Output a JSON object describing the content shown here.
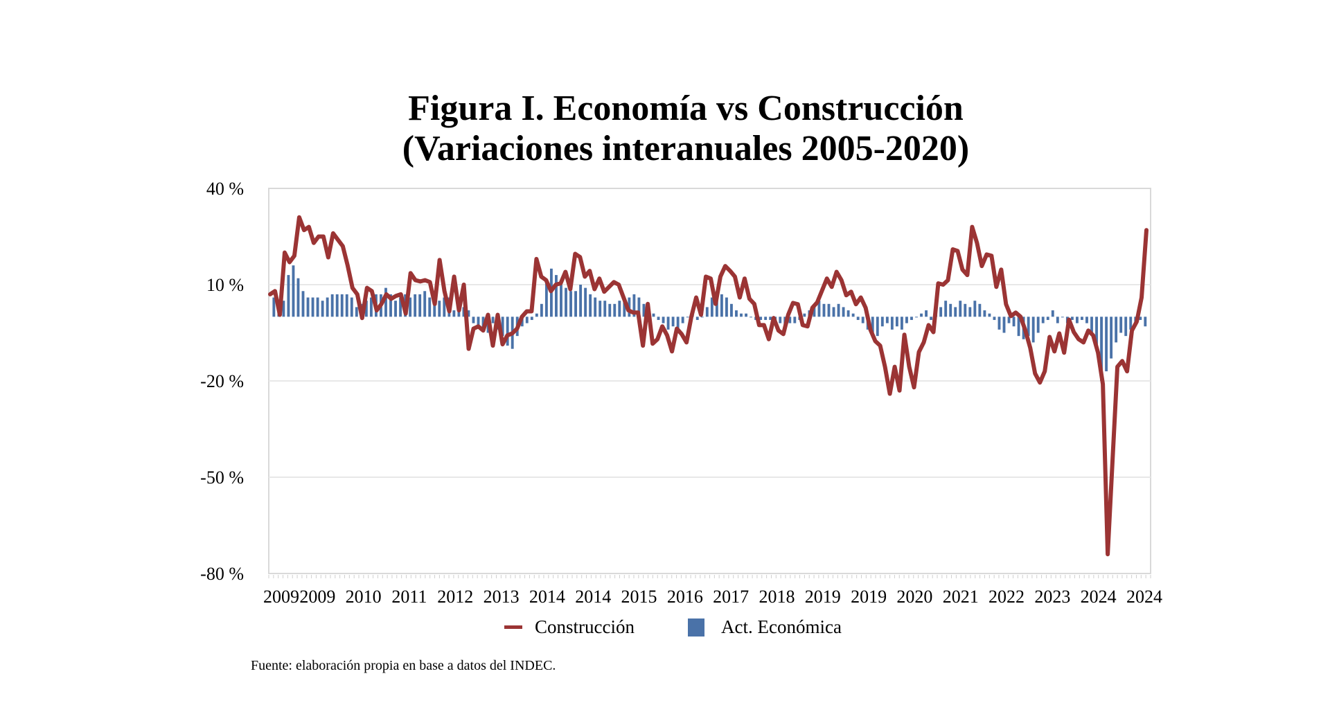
{
  "chart_data": {
    "type": "line+bar",
    "title": "Figura I. Economía vs Construcción",
    "subtitle": "(Variaciones interanuales 2005-2020)",
    "xlabel": "",
    "ylabel": "",
    "ylim": [
      -80,
      40
    ],
    "yticks": [
      40,
      10,
      -20,
      -50,
      -80
    ],
    "ytick_labels": [
      "40 %",
      "10 %",
      "-20 %",
      "-50 %",
      "-80 %"
    ],
    "xtick_labels": [
      "2009",
      "2009",
      "2010",
      "2011",
      "2012",
      "2013",
      "2014",
      "2014",
      "2015",
      "2016",
      "2017",
      "2018",
      "2019",
      "2019",
      "2020",
      "2021",
      "2022",
      "2023",
      "2024",
      "2024"
    ],
    "grid": true,
    "legend_position": "bottom",
    "series": [
      {
        "name": "Construcción",
        "type": "line",
        "color": "#9b3434",
        "values": [
          7,
          8,
          0.6,
          20,
          17,
          19,
          31,
          27,
          28,
          23,
          25,
          25,
          18.5,
          26,
          24,
          22,
          16,
          9,
          7,
          -0.4,
          9,
          8,
          2,
          4,
          7,
          5.6,
          6.5,
          7,
          1,
          13.6,
          11.4,
          11,
          11.4,
          10.8,
          4,
          17.7,
          8,
          1.7,
          12.5,
          2,
          10,
          -10,
          -3.7,
          -3,
          -4.3,
          0.6,
          -9,
          0.6,
          -8.6,
          -5.8,
          -5.2,
          -3.7,
          0,
          1.7,
          1.7,
          18,
          12.5,
          11.4,
          8,
          10,
          10.4,
          14,
          8.6,
          19.6,
          18.6,
          12.5,
          14.3,
          8.6,
          11.9,
          7.8,
          9.3,
          10.8,
          10,
          6,
          2,
          1.3,
          1.3,
          -9,
          4,
          -8.4,
          -7,
          -3,
          -5.8,
          -10.8,
          -3.7,
          -5.4,
          -8,
          0,
          6,
          0.6,
          12.5,
          11.9,
          4,
          12.5,
          15.8,
          14.3,
          12.5,
          6,
          11.9,
          5.6,
          4,
          -2.6,
          -2.6,
          -7,
          -0.4,
          -4.3,
          -5.4,
          0.6,
          4.3,
          3.9,
          -2.6,
          -3,
          2.8,
          4.5,
          8.2,
          11.9,
          9.3,
          14,
          11.4,
          6.7,
          7.8,
          3.9,
          6,
          2.8,
          -4.1,
          -7.6,
          -9,
          -15.6,
          -24,
          -15.6,
          -23,
          -5.6,
          -15.6,
          -22,
          -11,
          -8,
          -2.6,
          -4.8,
          10.4,
          10,
          11.4,
          21,
          20.5,
          14.7,
          13,
          28,
          23,
          15.8,
          19.4,
          19,
          9.3,
          14.7,
          3.9,
          0.2,
          1.3,
          0,
          -4.3,
          -9.7,
          -17.7,
          -20.5,
          -17,
          -6.3,
          -10.8,
          -5.2,
          -11.2,
          -0.9,
          -4.8,
          -7,
          -8,
          -4.3,
          -5.8,
          -11.2,
          -21,
          -74,
          -44.7,
          -15.6,
          -13.8,
          -17,
          -4.3,
          -1.5,
          6,
          27
        ]
      },
      {
        "name": "Act. Económica",
        "type": "bar",
        "color": "#4a72a8",
        "values": [
          6,
          5,
          5,
          13,
          16,
          12,
          8,
          6,
          6,
          6,
          5,
          6,
          7,
          7,
          7,
          7,
          6,
          3,
          4,
          5,
          6,
          7,
          7,
          9,
          7,
          5,
          6,
          7,
          6,
          7,
          7,
          8,
          6,
          7,
          5,
          6,
          6,
          2,
          4,
          3,
          2,
          -2,
          -3,
          -4,
          -5,
          -2,
          -4,
          -6,
          -9,
          -10,
          -6,
          -3,
          -2,
          -1,
          1,
          4,
          11,
          15,
          13,
          10,
          9,
          8,
          8,
          10,
          9,
          7,
          6,
          5,
          5,
          4,
          4,
          5,
          5,
          6,
          7,
          6,
          4,
          2,
          1,
          -1,
          -2,
          -4,
          -3,
          -5,
          -2,
          0,
          1,
          -1,
          0,
          3,
          6,
          8,
          7,
          6,
          4,
          2,
          1,
          1,
          0,
          -1,
          -1,
          -1,
          -1,
          -2,
          -2,
          -3,
          -2,
          -2,
          -1,
          1,
          2,
          3,
          5,
          4,
          4,
          3,
          4,
          3,
          2,
          1,
          -1,
          -2,
          -4,
          -5,
          -6,
          -3,
          -2,
          -4,
          -3,
          -4,
          -2,
          -1,
          0,
          1,
          2,
          -1,
          1,
          3,
          5,
          4,
          3,
          5,
          4,
          3,
          5,
          4,
          2,
          1,
          -1,
          -4,
          -5,
          -2,
          -3,
          -6,
          -7,
          -6,
          -8,
          -5,
          -2,
          -1,
          2,
          -2,
          0,
          -2,
          -1,
          -2,
          -1,
          -2,
          -5,
          -10,
          -20,
          -17,
          -13,
          -8,
          -5,
          -6,
          -4,
          -2,
          -1,
          -3
        ]
      }
    ],
    "legend": [
      "Construcción",
      "Act. Económica"
    ]
  },
  "source_note": "Fuente: elaboración propia en base a datos del INDEC."
}
